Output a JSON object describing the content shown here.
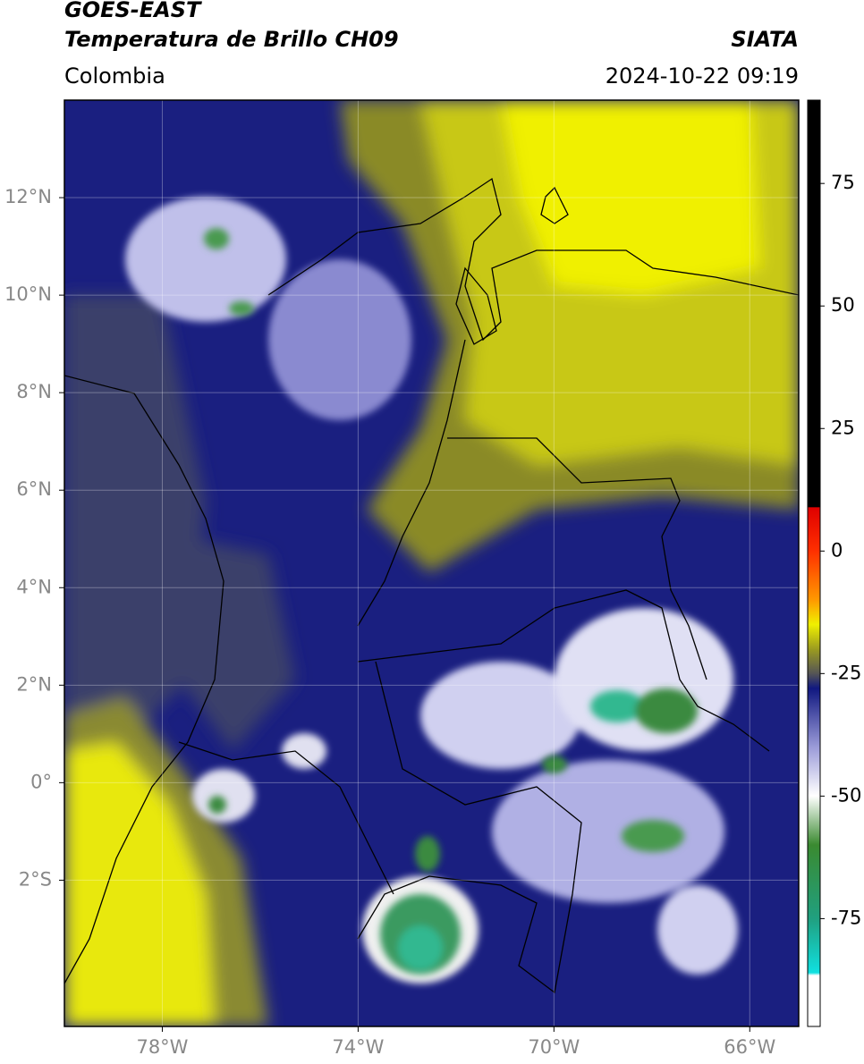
{
  "header": {
    "satellite": "GOES-EAST",
    "product": "Temperatura de Brillo CH09",
    "source": "SIATA",
    "region": "Colombia",
    "datetime": "2024-10-22 09:19"
  },
  "map": {
    "xlim": [
      -80,
      -65
    ],
    "ylim": [
      -5,
      14
    ],
    "grid": true,
    "xticks": [
      {
        "value": -78,
        "label": "78°W"
      },
      {
        "value": -74,
        "label": "74°W"
      },
      {
        "value": -70,
        "label": "70°W"
      },
      {
        "value": -66,
        "label": "66°W"
      }
    ],
    "yticks": [
      {
        "value": 12,
        "label": "12°N"
      },
      {
        "value": 10,
        "label": "10°N"
      },
      {
        "value": 8,
        "label": "8°N"
      },
      {
        "value": 6,
        "label": "6°N"
      },
      {
        "value": 4,
        "label": "4°N"
      },
      {
        "value": 2,
        "label": "2°N"
      },
      {
        "value": 0,
        "label": "0°"
      },
      {
        "value": -2,
        "label": "2°S"
      }
    ]
  },
  "colorbar": {
    "clim": [
      -97,
      92
    ],
    "ticks": [
      75,
      50,
      25,
      0,
      -25,
      -50,
      -75
    ]
  }
}
